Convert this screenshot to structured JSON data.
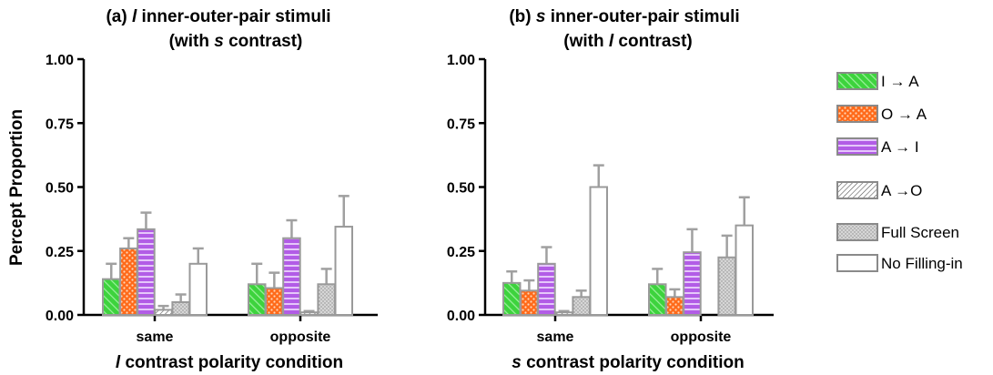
{
  "legend": [
    {
      "key": "IA",
      "label": "I → A",
      "fill": "#3dd33d",
      "pattern": "diag"
    },
    {
      "key": "OA",
      "label": "O → A",
      "fill": "#ff6a1a",
      "pattern": "dots"
    },
    {
      "key": "AI",
      "label": "A → I",
      "fill": "#b25ce6",
      "pattern": "hstripes"
    },
    {
      "key": "AO",
      "label": "A →O",
      "fill": "#ffffff",
      "pattern": "hatch"
    },
    {
      "key": "FS",
      "label": "Full Screen",
      "fill": "#d4d4d4",
      "pattern": "stipple"
    },
    {
      "key": "NF",
      "label": "No Filling-in",
      "fill": "#ffffff",
      "pattern": "none"
    }
  ],
  "chart_data": [
    {
      "type": "bar",
      "title_line1": {
        "prefix": "(a) ",
        "italic": "l",
        "suffix": " inner-outer-pair stimuli"
      },
      "title_line2": {
        "prefix": "(with ",
        "italic": "s",
        "suffix": " contrast)"
      },
      "ylabel": "Percept Proportion",
      "xlabel": {
        "italic": "l",
        "suffix": " contrast polarity condition"
      },
      "ylim": [
        0,
        1
      ],
      "yticks": [
        "0.00",
        "0.25",
        "0.50",
        "0.75",
        "1.00"
      ],
      "categories": [
        "same",
        "opposite"
      ],
      "series": [
        {
          "name": "I → A",
          "values": [
            0.14,
            0.12
          ],
          "errors": [
            0.06,
            0.08
          ]
        },
        {
          "name": "O → A",
          "values": [
            0.26,
            0.105
          ],
          "errors": [
            0.04,
            0.06
          ]
        },
        {
          "name": "A → I",
          "values": [
            0.335,
            0.3
          ],
          "errors": [
            0.065,
            0.07
          ]
        },
        {
          "name": "A →O",
          "values": [
            0.02,
            0.01
          ],
          "errors": [
            0.015,
            0.005
          ]
        },
        {
          "name": "Full Screen",
          "values": [
            0.05,
            0.12
          ],
          "errors": [
            0.03,
            0.06
          ]
        },
        {
          "name": "No Filling-in",
          "values": [
            0.2,
            0.345
          ],
          "errors": [
            0.06,
            0.12
          ]
        }
      ]
    },
    {
      "type": "bar",
      "title_line1": {
        "prefix": "(b) ",
        "italic": "s",
        "suffix": " inner-outer-pair stimuli"
      },
      "title_line2": {
        "prefix": "(with ",
        "italic": "l",
        "suffix": " contrast)"
      },
      "ylabel": "",
      "xlabel": {
        "italic": "s",
        "suffix": " contrast polarity condition"
      },
      "ylim": [
        0,
        1
      ],
      "yticks": [
        "0.00",
        "0.25",
        "0.50",
        "0.75",
        "1.00"
      ],
      "categories": [
        "same",
        "opposite"
      ],
      "series": [
        {
          "name": "I → A",
          "values": [
            0.125,
            0.12
          ],
          "errors": [
            0.045,
            0.06
          ]
        },
        {
          "name": "O → A",
          "values": [
            0.095,
            0.07
          ],
          "errors": [
            0.04,
            0.03
          ]
        },
        {
          "name": "A → I",
          "values": [
            0.2,
            0.245
          ],
          "errors": [
            0.065,
            0.09
          ]
        },
        {
          "name": "A →O",
          "values": [
            0.01,
            0.0
          ],
          "errors": [
            0.005,
            0.0
          ]
        },
        {
          "name": "Full Screen",
          "values": [
            0.07,
            0.225
          ],
          "errors": [
            0.025,
            0.085
          ]
        },
        {
          "name": "No Filling-in",
          "values": [
            0.5,
            0.35
          ],
          "errors": [
            0.085,
            0.11
          ]
        }
      ]
    }
  ]
}
